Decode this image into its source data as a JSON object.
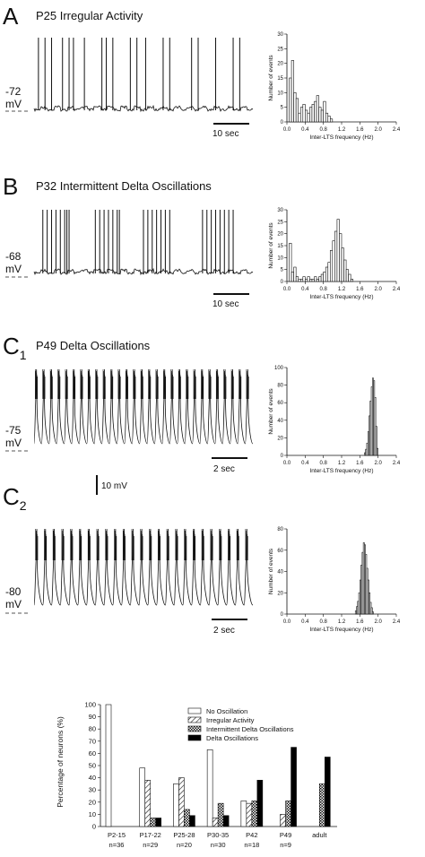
{
  "panels": [
    {
      "letter": "A",
      "subscript": "",
      "title": "P25  Irregular Activity",
      "potential": "-72",
      "unit": "mV",
      "scale_label": "10 sec",
      "trace": {
        "baseline_gap": 0.02,
        "spike_times": [
          0.02,
          0.05,
          0.08,
          0.13,
          0.16,
          0.18,
          0.23,
          0.31,
          0.33,
          0.36,
          0.44,
          0.47,
          0.51,
          0.59,
          0.62,
          0.72,
          0.75,
          0.83,
          0.91,
          0.94
        ]
      },
      "histogram": {
        "type": "bar",
        "xlabel": "Inter-LTS frequency (Hz)",
        "ylabel": "Number of events",
        "xlim": [
          0,
          2.4
        ],
        "ylim": [
          0,
          30
        ],
        "xticks": [
          "0.0",
          "0.4",
          "0.8",
          "1.2",
          "1.6",
          "2.0",
          "2.4"
        ],
        "yticks": [
          "0",
          "5",
          "10",
          "15",
          "20",
          "25",
          "30"
        ],
        "bin_width": 0.05,
        "bins_start": [
          0.05,
          0.1,
          0.15,
          0.2,
          0.25,
          0.3,
          0.35,
          0.4,
          0.45,
          0.5,
          0.55,
          0.6,
          0.65,
          0.7,
          0.75,
          0.8,
          0.85,
          0.9,
          0.95
        ],
        "counts": [
          15,
          21,
          10,
          8,
          3,
          5,
          6,
          4,
          3,
          5,
          6,
          7,
          9,
          5,
          4,
          7,
          3,
          2,
          1
        ]
      }
    },
    {
      "letter": "B",
      "subscript": "",
      "title": "P32  Intermittent Delta Oscillations",
      "potential": "-68",
      "unit": "mV",
      "scale_label": "10 sec",
      "trace": {
        "baseline_gap": 0.02,
        "spike_times": [
          0.04,
          0.06,
          0.08,
          0.1,
          0.12,
          0.14,
          0.15,
          0.16,
          0.28,
          0.3,
          0.32,
          0.34,
          0.36,
          0.38,
          0.39,
          0.5,
          0.52,
          0.54,
          0.56,
          0.58,
          0.6,
          0.62,
          0.77,
          0.79,
          0.81,
          0.83,
          0.85,
          0.87,
          0.89,
          0.91
        ]
      },
      "histogram": {
        "type": "bar",
        "xlabel": "Inter-LTS frequency (Hz)",
        "ylabel": "Number of events",
        "xlim": [
          0,
          2.4
        ],
        "ylim": [
          0,
          30
        ],
        "xticks": [
          "0.0",
          "0.4",
          "0.8",
          "1.2",
          "1.6",
          "2.0",
          "2.4"
        ],
        "yticks": [
          "0",
          "5",
          "10",
          "15",
          "20",
          "25",
          "30"
        ],
        "bin_width": 0.05,
        "bins_start": [
          0.05,
          0.1,
          0.15,
          0.2,
          0.25,
          0.3,
          0.35,
          0.4,
          0.45,
          0.5,
          0.55,
          0.6,
          0.65,
          0.7,
          0.75,
          0.8,
          0.85,
          0.9,
          0.95,
          1.0,
          1.05,
          1.1,
          1.15,
          1.2,
          1.25,
          1.3,
          1.35,
          1.4
        ],
        "counts": [
          16,
          4,
          6,
          2,
          1,
          1,
          2,
          1,
          2,
          1,
          1,
          2,
          1,
          2,
          3,
          4,
          6,
          8,
          13,
          17,
          21,
          26,
          20,
          14,
          9,
          5,
          3,
          1
        ]
      }
    },
    {
      "letter": "C",
      "subscript": "1",
      "title": "P49  Delta Oscillations",
      "potential": "-75",
      "unit": "mV",
      "scale_label": "2 sec",
      "trace": {
        "periodic_count": 29
      },
      "histogram": {
        "type": "bar",
        "xlabel": "Inter-LTS frequency (Hz)",
        "ylabel": "Number of events",
        "xlim": [
          0,
          2.4
        ],
        "ylim": [
          0,
          100
        ],
        "xticks": [
          "0.0",
          "0.4",
          "0.8",
          "1.2",
          "1.6",
          "2.0",
          "2.4"
        ],
        "yticks": [
          "0",
          "20",
          "40",
          "60",
          "80",
          "100"
        ],
        "bin_width": 0.025,
        "bins_start": [
          1.7,
          1.725,
          1.75,
          1.775,
          1.8,
          1.825,
          1.85,
          1.875,
          1.9,
          1.925,
          1.95,
          1.975
        ],
        "counts": [
          3,
          7,
          14,
          27,
          45,
          62,
          78,
          88,
          85,
          66,
          33,
          8
        ]
      }
    },
    {
      "letter": "C",
      "subscript": "2",
      "title": "",
      "potential": "-80",
      "unit": "mV",
      "scale_label": "2 sec",
      "trace": {
        "periodic_count": 25
      },
      "histogram": {
        "type": "bar",
        "xlabel": "Inter-LTS frequency (Hz)",
        "ylabel": "Number of events",
        "xlim": [
          0,
          2.4
        ],
        "ylim": [
          0,
          80
        ],
        "xticks": [
          "0.0",
          "0.4",
          "0.8",
          "1.2",
          "1.6",
          "2.0",
          "2.4"
        ],
        "yticks": [
          "0",
          "20",
          "40",
          "60",
          "80"
        ],
        "bin_width": 0.025,
        "bins_start": [
          1.5,
          1.525,
          1.55,
          1.575,
          1.6,
          1.625,
          1.65,
          1.675,
          1.7,
          1.725,
          1.75,
          1.775,
          1.8,
          1.825,
          1.85,
          1.875
        ],
        "counts": [
          3,
          7,
          12,
          20,
          32,
          46,
          58,
          67,
          65,
          56,
          43,
          32,
          20,
          11,
          6,
          2
        ]
      }
    }
  ],
  "voltage_scale_label": "10 mV",
  "chart_data": {
    "type": "bar",
    "ylabel": "Percentage of neurons (%)",
    "ylim": [
      0,
      100
    ],
    "yticks": [
      "0",
      "10",
      "20",
      "30",
      "40",
      "50",
      "60",
      "70",
      "80",
      "90",
      "100"
    ],
    "categories": [
      "P2-15",
      "P17-22",
      "P25-28",
      "P30-35",
      "P42",
      "P49",
      "adult"
    ],
    "category_n": [
      "n=36",
      "n=29",
      "n=20",
      "n=30",
      "n=18",
      "n=9",
      ""
    ],
    "series": [
      {
        "name": "No  Oscillation",
        "values": [
          100,
          48,
          35,
          63,
          21,
          0,
          0
        ],
        "fill": "empty"
      },
      {
        "name": "Irregular  Activity",
        "values": [
          0,
          38,
          40,
          7,
          19,
          10,
          0
        ],
        "fill": "hatch"
      },
      {
        "name": "Intermittent  Delta Oscillations",
        "values": [
          0,
          7,
          14,
          19,
          21,
          21,
          35
        ],
        "fill": "cross"
      },
      {
        "name": "Delta  Oscillations",
        "values": [
          0,
          7,
          9,
          9,
          38,
          65,
          57
        ],
        "fill": "solid"
      }
    ]
  }
}
